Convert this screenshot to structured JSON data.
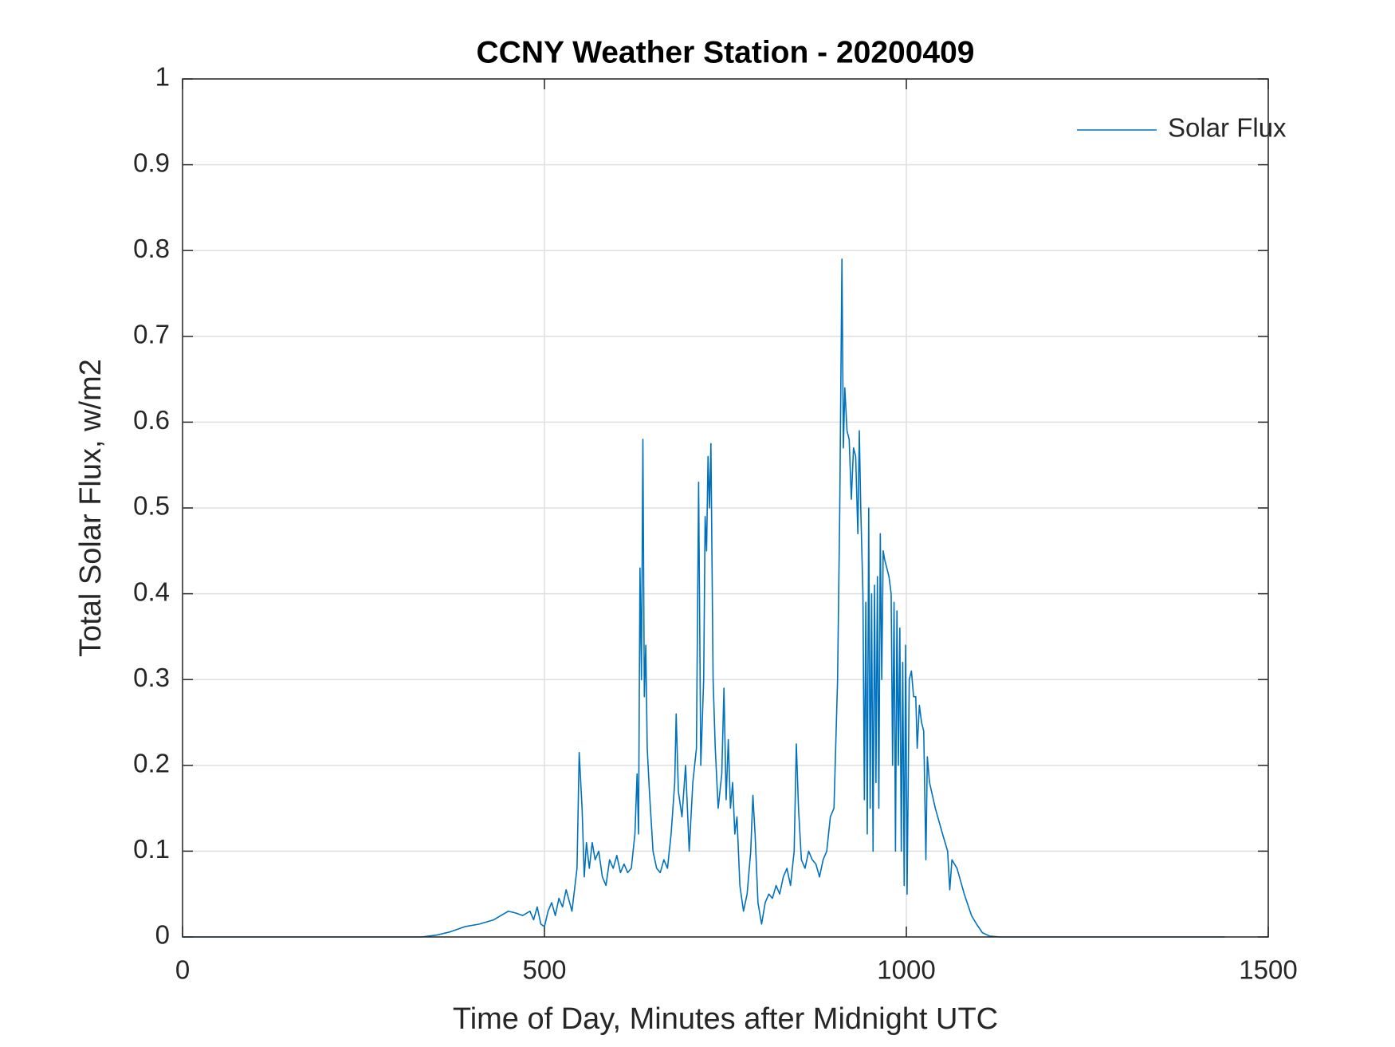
{
  "chart_data": {
    "type": "line",
    "title": "CCNY Weather Station - 20200409",
    "x_label": "Time of Day, Minutes after Midnight UTC",
    "y_label": "Total Solar Flux, w/m2",
    "xlim": [
      0,
      1500
    ],
    "xticks": [
      0,
      500,
      1000,
      1500
    ],
    "ylim": [
      0,
      1
    ],
    "yticks": [
      0,
      0.1,
      0.2,
      0.3,
      0.4,
      0.5,
      0.6,
      0.7,
      0.8,
      0.9,
      1
    ],
    "grid": true,
    "legend_position": "northeast",
    "x": [
      0,
      330,
      350,
      370,
      390,
      410,
      430,
      440,
      450,
      460,
      470,
      480,
      485,
      490,
      495,
      500,
      505,
      510,
      515,
      520,
      525,
      530,
      538,
      545,
      548,
      552,
      555,
      558,
      562,
      566,
      570,
      575,
      580,
      585,
      590,
      595,
      600,
      605,
      610,
      615,
      620,
      625,
      628,
      630,
      632,
      634,
      636,
      638,
      640,
      642,
      645,
      650,
      655,
      660,
      665,
      670,
      675,
      680,
      682,
      685,
      690,
      695,
      700,
      705,
      710,
      713,
      716,
      720,
      722,
      724,
      726,
      728,
      730,
      733,
      736,
      740,
      745,
      748,
      751,
      754,
      757,
      760,
      763,
      766,
      770,
      775,
      780,
      785,
      788,
      791,
      795,
      800,
      805,
      810,
      815,
      820,
      825,
      830,
      835,
      840,
      845,
      848,
      851,
      855,
      860,
      865,
      870,
      875,
      880,
      885,
      890,
      895,
      900,
      905,
      908,
      911,
      913,
      915,
      918,
      921,
      924,
      927,
      930,
      933,
      935,
      937,
      940,
      942,
      944,
      946,
      948,
      950,
      952,
      954,
      956,
      958,
      960,
      962,
      964,
      966,
      968,
      970,
      973,
      976,
      979,
      981,
      983,
      985,
      987,
      989,
      991,
      993,
      995,
      997,
      999,
      1001,
      1004,
      1007,
      1010,
      1013,
      1015,
      1018,
      1021,
      1024,
      1027,
      1029,
      1032,
      1040,
      1050,
      1057,
      1060,
      1063,
      1070,
      1080,
      1090,
      1097,
      1105,
      1115,
      1130,
      1440
    ],
    "series": [
      {
        "name": "Solar Flux",
        "color": "#0072bd",
        "values": [
          0,
          0,
          0.002,
          0.006,
          0.012,
          0.015,
          0.02,
          0.025,
          0.03,
          0.028,
          0.025,
          0.03,
          0.02,
          0.035,
          0.015,
          0.012,
          0.03,
          0.04,
          0.025,
          0.045,
          0.035,
          0.055,
          0.03,
          0.08,
          0.215,
          0.15,
          0.07,
          0.11,
          0.08,
          0.11,
          0.09,
          0.1,
          0.07,
          0.06,
          0.09,
          0.08,
          0.095,
          0.075,
          0.085,
          0.075,
          0.08,
          0.12,
          0.19,
          0.12,
          0.43,
          0.3,
          0.58,
          0.28,
          0.34,
          0.22,
          0.17,
          0.1,
          0.08,
          0.075,
          0.09,
          0.08,
          0.12,
          0.18,
          0.26,
          0.17,
          0.14,
          0.2,
          0.1,
          0.18,
          0.22,
          0.53,
          0.2,
          0.3,
          0.49,
          0.45,
          0.56,
          0.5,
          0.575,
          0.3,
          0.22,
          0.15,
          0.19,
          0.29,
          0.16,
          0.23,
          0.15,
          0.18,
          0.12,
          0.14,
          0.06,
          0.03,
          0.05,
          0.1,
          0.165,
          0.12,
          0.04,
          0.015,
          0.04,
          0.05,
          0.045,
          0.06,
          0.05,
          0.07,
          0.08,
          0.06,
          0.1,
          0.225,
          0.15,
          0.09,
          0.08,
          0.1,
          0.09,
          0.085,
          0.07,
          0.09,
          0.1,
          0.14,
          0.15,
          0.3,
          0.5,
          0.79,
          0.57,
          0.64,
          0.59,
          0.58,
          0.51,
          0.57,
          0.56,
          0.47,
          0.59,
          0.5,
          0.4,
          0.16,
          0.39,
          0.12,
          0.5,
          0.15,
          0.4,
          0.1,
          0.41,
          0.18,
          0.42,
          0.15,
          0.47,
          0.3,
          0.45,
          0.44,
          0.43,
          0.42,
          0.4,
          0.2,
          0.39,
          0.1,
          0.38,
          0.2,
          0.36,
          0.1,
          0.32,
          0.06,
          0.34,
          0.05,
          0.3,
          0.31,
          0.28,
          0.28,
          0.22,
          0.27,
          0.25,
          0.24,
          0.09,
          0.21,
          0.18,
          0.15,
          0.12,
          0.1,
          0.055,
          0.09,
          0.08,
          0.05,
          0.025,
          0.015,
          0.005,
          0.001,
          0,
          0
        ]
      }
    ]
  }
}
